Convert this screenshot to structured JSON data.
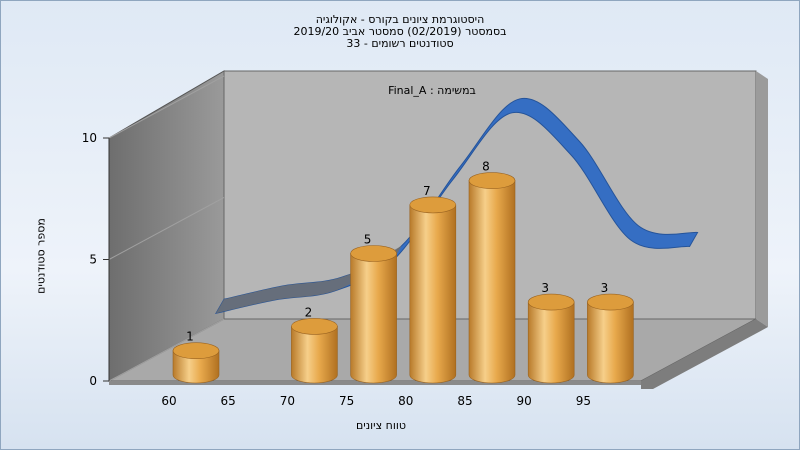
{
  "titles": [
    "היסטוגרמת ציונים בקורס - אקולוגיה",
    "בסמסטר  (02/2019)  סמסטר אביב 2019/20",
    "סטודנטים רשומים - 33"
  ],
  "colors": {
    "bar": "#e8a94c",
    "curve": "#2f6bc4",
    "back_wall": "#b6b6b6",
    "side_wall": "#808080",
    "floor": "#a9a9a9"
  },
  "chart_data": {
    "type": "bar",
    "title": "",
    "annotation": "Final_A : במשימה",
    "xlabel": "טווח ציונים",
    "ylabel": "מספר סטודנטים",
    "ylim": [
      0,
      10
    ],
    "yticks": [
      "0",
      "5",
      "10"
    ],
    "xticks": [
      "60",
      "65",
      "70",
      "75",
      "80",
      "85",
      "90",
      "95"
    ],
    "categories": [
      "60-65",
      "65-70",
      "70-75",
      "75-80",
      "80-85",
      "85-90",
      "90-95",
      "95-100"
    ],
    "values": [
      1,
      0,
      2,
      5,
      7,
      8,
      3,
      3
    ],
    "data_labels": [
      "1",
      "",
      "2",
      "5",
      "7",
      "8",
      "3",
      "3"
    ],
    "grid": false,
    "series": [
      {
        "type": "bar",
        "values": [
          1,
          0,
          2,
          5,
          7,
          8,
          3,
          3
        ]
      },
      {
        "type": "area-curve",
        "x": [
          60,
          65,
          70,
          75,
          80,
          85,
          90,
          95,
          100
        ],
        "values": [
          1.2,
          1.8,
          2.2,
          3.6,
          7.2,
          10.2,
          8.3,
          4.5,
          4.2
        ]
      }
    ]
  }
}
